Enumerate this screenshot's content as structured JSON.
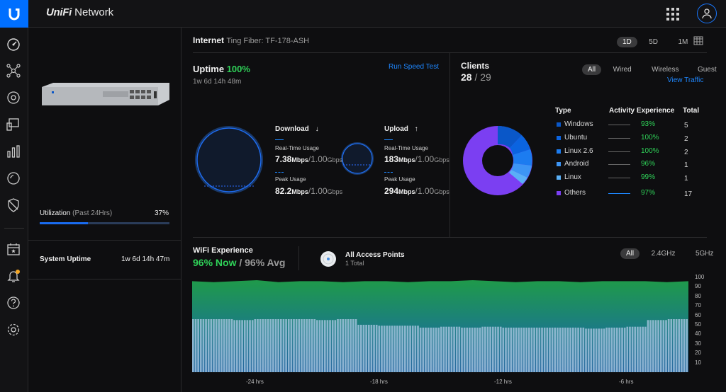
{
  "app": {
    "name_prefix": "UniFi",
    "name": "Network"
  },
  "sidebar": {
    "icons": [
      "dashboard-icon",
      "topology-icon",
      "devices-icon",
      "clients-icon",
      "statistics-icon",
      "insights-icon",
      "security-icon",
      "events-icon",
      "alerts-icon",
      "help-icon",
      "settings-icon"
    ]
  },
  "device": {
    "utilization_label": "Utilization",
    "utilization_period": "(Past 24Hrs)",
    "utilization_value": "37%",
    "utilization_fraction": 0.37,
    "uptime_label": "System Uptime",
    "uptime_value": "1w 6d 14h 47m"
  },
  "internet": {
    "label": "Internet",
    "isp": "Ting Fiber: TF-178-ASH",
    "ranges": [
      "1D",
      "5D",
      "1M"
    ],
    "active_range": "1D"
  },
  "uptime": {
    "label": "Uptime",
    "value": "100%",
    "duration": "1w 6d 14h 48m",
    "speed_test": "Run Speed Test"
  },
  "download": {
    "label": "Download",
    "arrow": "↓",
    "realtime_label": "Real-Time Usage",
    "realtime_value": "7.38",
    "realtime_unit": "Mbps",
    "realtime_cap": "/1.00",
    "realtime_cap_unit": "Gbps",
    "peak_label": "Peak Usage",
    "peak_value": "82.2",
    "peak_unit": "Mbps",
    "peak_cap": "/1.00",
    "peak_cap_unit": "Gbps"
  },
  "upload": {
    "label": "Upload",
    "arrow": "↑",
    "realtime_label": "Real-Time Usage",
    "realtime_value": "183",
    "realtime_unit": "Mbps",
    "realtime_cap": "/1.00",
    "realtime_cap_unit": "Gbps",
    "peak_label": "Peak Usage",
    "peak_value": "294",
    "peak_unit": "Mbps",
    "peak_cap": "/1.00",
    "peak_cap_unit": "Gbps"
  },
  "clients": {
    "label": "Clients",
    "count": "28",
    "sep": "/",
    "total": "29",
    "filters": [
      "All",
      "Wired",
      "Wireless",
      "Guest"
    ],
    "active_filter": "All",
    "view_traffic": "View Traffic",
    "headers": {
      "type": "Type",
      "experience": "Activity Experience",
      "total": "Total"
    },
    "rows": [
      {
        "type": "Windows",
        "pct": "93%",
        "total": "5",
        "color": "#0a57c8"
      },
      {
        "type": "Ubuntu",
        "pct": "100%",
        "total": "2",
        "color": "#0b64e0"
      },
      {
        "type": "Linux 2.6",
        "pct": "100%",
        "total": "2",
        "color": "#1c7cf0"
      },
      {
        "type": "Android",
        "pct": "96%",
        "total": "1",
        "color": "#3d95f5"
      },
      {
        "type": "Linux",
        "pct": "99%",
        "total": "1",
        "color": "#5ab0f7"
      },
      {
        "type": "Others",
        "pct": "97%",
        "total": "17",
        "color": "#7b3ff2"
      }
    ]
  },
  "wifi": {
    "label": "WiFi Experience",
    "now": "96% Now",
    "sep": "/",
    "avg": "96% Avg",
    "ap_label": "All Access Points",
    "ap_count": "1 Total",
    "bands": [
      "All",
      "2.4GHz",
      "5GHz"
    ],
    "active_band": "All",
    "y_ticks": [
      "100",
      "90",
      "80",
      "70",
      "60",
      "50",
      "40",
      "30",
      "20",
      "10"
    ],
    "x_ticks": [
      "-24 hrs",
      "-18 hrs",
      "-12 hrs",
      "-6 hrs"
    ]
  },
  "chart_data": {
    "type": "area",
    "title": "WiFi Experience",
    "ylim": [
      0,
      100
    ],
    "x_ticks": [
      "-24 hrs",
      "-18 hrs",
      "-12 hrs",
      "-6 hrs"
    ],
    "series": [
      {
        "values": [
          96,
          95,
          96,
          97,
          95,
          96,
          96,
          95,
          96,
          96,
          95,
          96,
          96,
          97,
          96,
          95,
          96,
          96,
          95,
          96,
          96,
          96,
          95,
          96
        ]
      },
      {
        "values": [
          56,
          56,
          55,
          56,
          56,
          56,
          55,
          56,
          50,
          49,
          49,
          47,
          48,
          47,
          48,
          47,
          47,
          47,
          47,
          46,
          47,
          48,
          55,
          56
        ]
      }
    ]
  },
  "colors": {
    "accent": "#1e87ff",
    "good": "#2fd158",
    "others": "#7b3ff2"
  }
}
